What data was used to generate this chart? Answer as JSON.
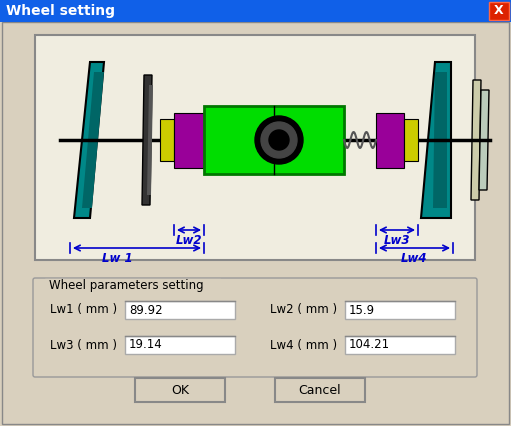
{
  "title": "Wheel setting",
  "bg_color": "#d9d0be",
  "title_bar_color_l": "#1060e8",
  "title_bar_color_r": "#0844c0",
  "title_text_color": "white",
  "diagram_bg": "#f0ede0",
  "params_label": "Wheel parameters setting",
  "lw1_label": "Lw1（mm）",
  "lw2_label": "Lw2（mm）",
  "lw3_label": "Lw3（mm）",
  "lw4_label": "Lw4（mm）",
  "lw1_val": "89.92",
  "lw2_val": "15.9",
  "lw3_val": "19.14",
  "lw4_val": "104.21",
  "annotation_color": "#0000cc",
  "wheel_green": "#00dd00",
  "wheel_purple": "#990099",
  "wheel_yellow": "#cccc00",
  "wheel_teal": "#008888",
  "wheel_teal_dark": "#006666",
  "shaft_color": "#000000"
}
